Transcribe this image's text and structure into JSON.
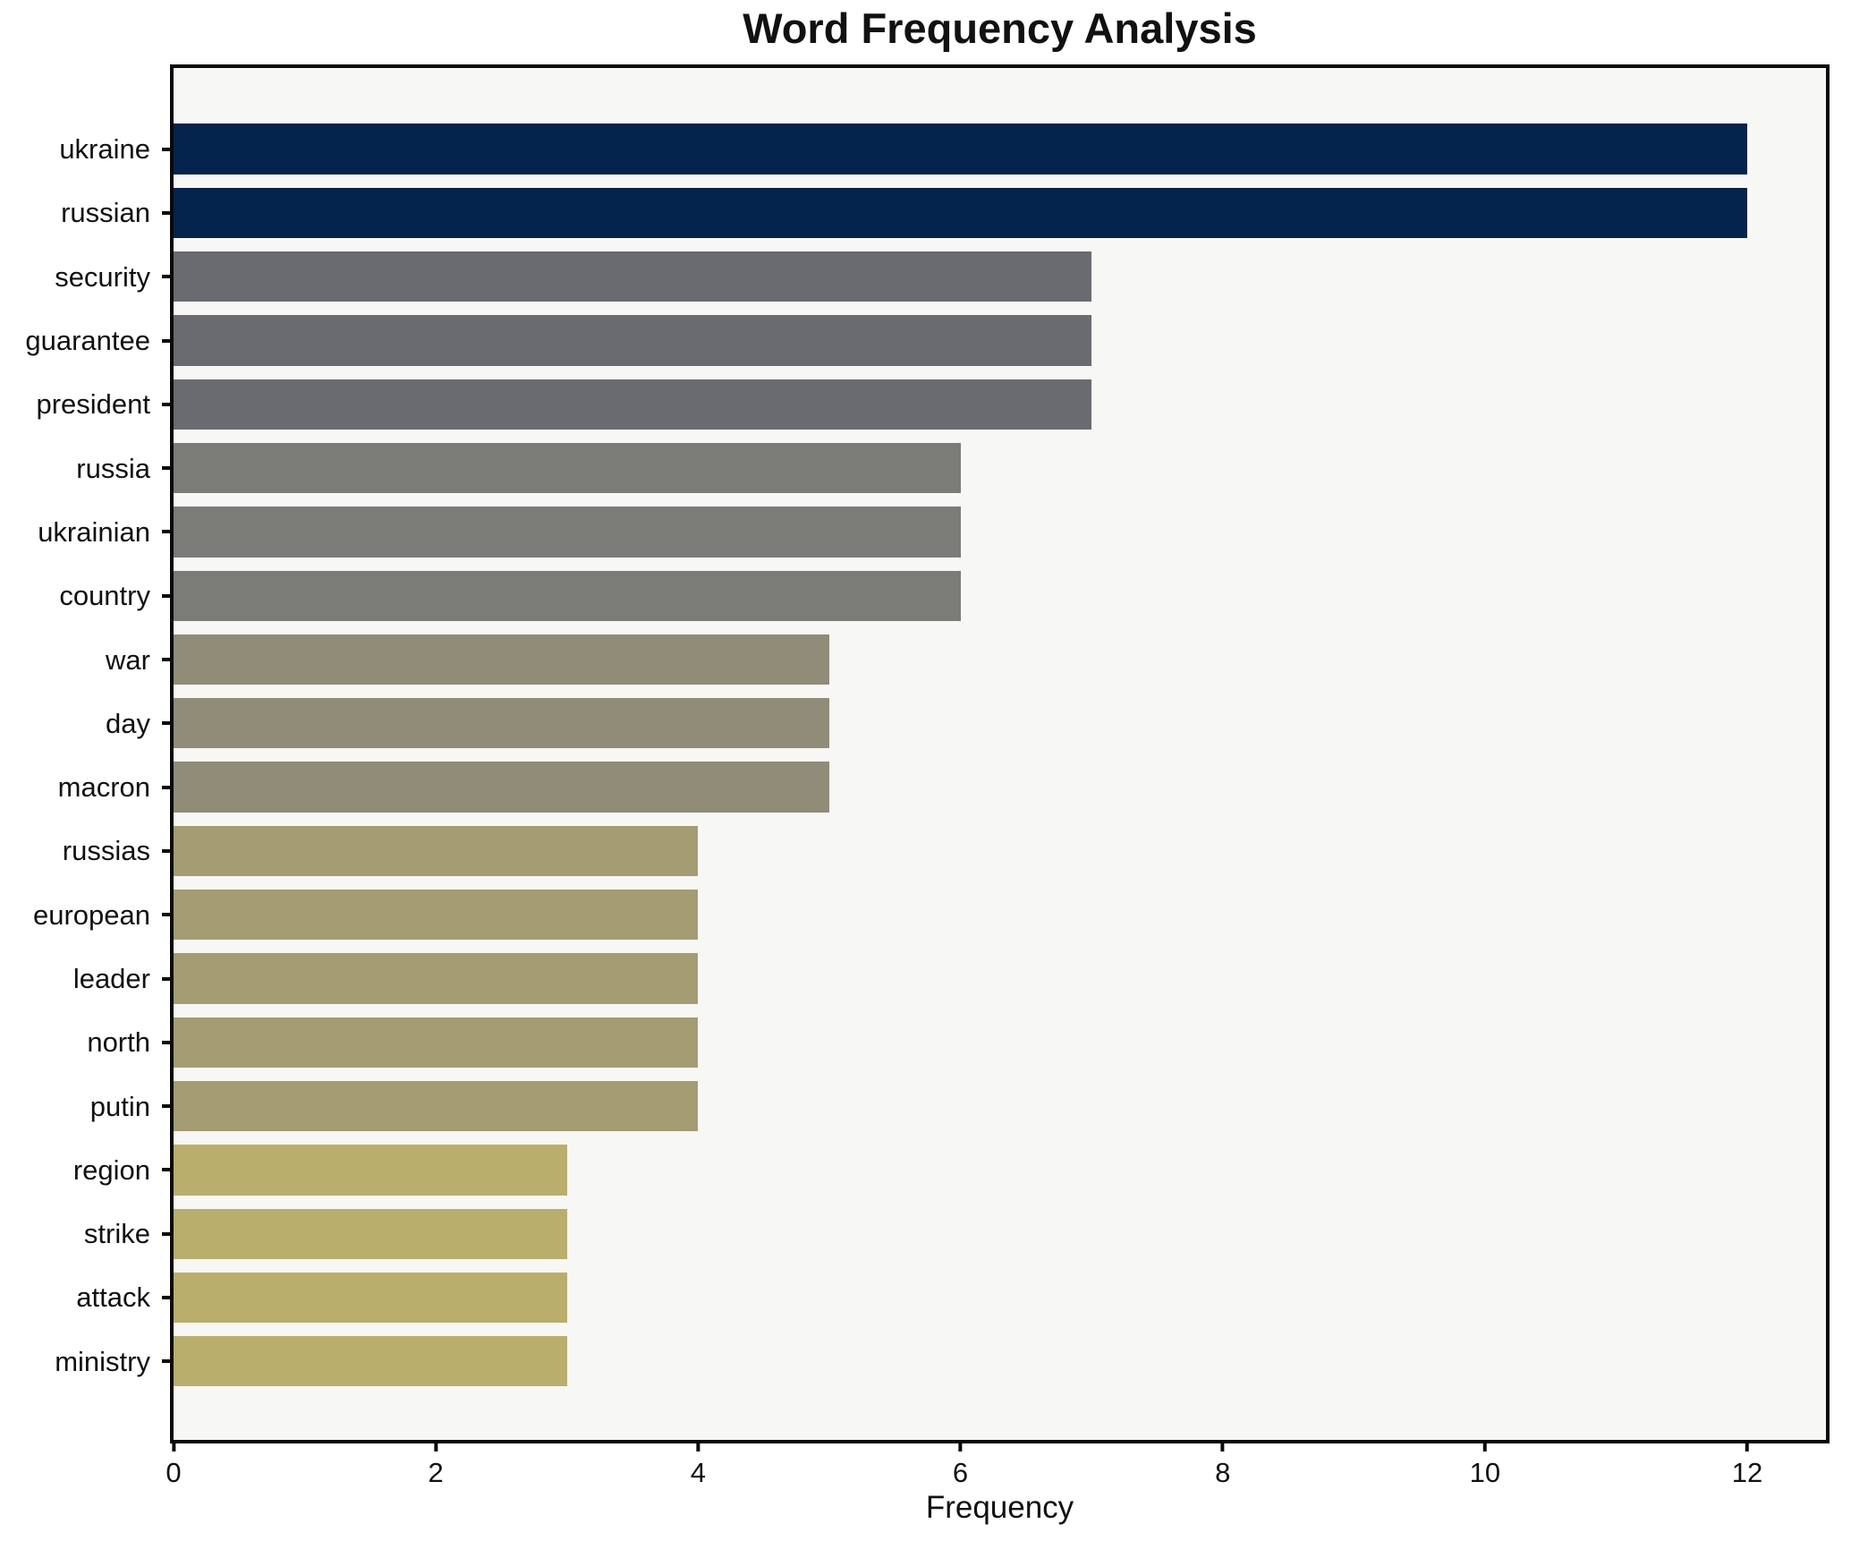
{
  "chart_data": {
    "type": "bar",
    "orientation": "horizontal",
    "title": "Word Frequency Analysis",
    "xlabel": "Frequency",
    "ylabel": "",
    "xlim": [
      0,
      12.6
    ],
    "x_ticks": [
      0,
      2,
      4,
      6,
      8,
      10,
      12
    ],
    "grid": false,
    "legend": "none",
    "plot_background": "#f7f7f5",
    "figure_background": "#ffffff",
    "spine_color": "#0a0a0a",
    "text_color": "#111111",
    "categories": [
      "ukraine",
      "russian",
      "security",
      "guarantee",
      "president",
      "russia",
      "ukrainian",
      "country",
      "war",
      "day",
      "macron",
      "russias",
      "european",
      "leader",
      "north",
      "putin",
      "region",
      "strike",
      "attack",
      "ministry"
    ],
    "values": [
      12,
      12,
      7,
      7,
      7,
      6,
      6,
      6,
      5,
      5,
      5,
      4,
      4,
      4,
      4,
      4,
      3,
      3,
      3,
      3
    ],
    "items": [
      {
        "word": "ukraine",
        "value": 12,
        "color": "#04234d"
      },
      {
        "word": "russian",
        "value": 12,
        "color": "#04234d"
      },
      {
        "word": "security",
        "value": 7,
        "color": "#696b71"
      },
      {
        "word": "guarantee",
        "value": 7,
        "color": "#696b71"
      },
      {
        "word": "president",
        "value": 7,
        "color": "#696b71"
      },
      {
        "word": "russia",
        "value": 6,
        "color": "#7b7b78"
      },
      {
        "word": "ukrainian",
        "value": 6,
        "color": "#7b7b78"
      },
      {
        "word": "country",
        "value": 6,
        "color": "#7b7b78"
      },
      {
        "word": "war",
        "value": 5,
        "color": "#918c77"
      },
      {
        "word": "day",
        "value": 5,
        "color": "#918c77"
      },
      {
        "word": "macron",
        "value": 5,
        "color": "#918c77"
      },
      {
        "word": "russias",
        "value": 4,
        "color": "#a49c72"
      },
      {
        "word": "european",
        "value": 4,
        "color": "#a49c72"
      },
      {
        "word": "leader",
        "value": 4,
        "color": "#a49c72"
      },
      {
        "word": "north",
        "value": 4,
        "color": "#a49c72"
      },
      {
        "word": "putin",
        "value": 4,
        "color": "#a49c72"
      },
      {
        "word": "region",
        "value": 3,
        "color": "#b9ae6b"
      },
      {
        "word": "strike",
        "value": 3,
        "color": "#b9ae6b"
      },
      {
        "word": "attack",
        "value": 3,
        "color": "#b9ae6b"
      },
      {
        "word": "ministry",
        "value": 3,
        "color": "#b9ae6b"
      }
    ]
  }
}
